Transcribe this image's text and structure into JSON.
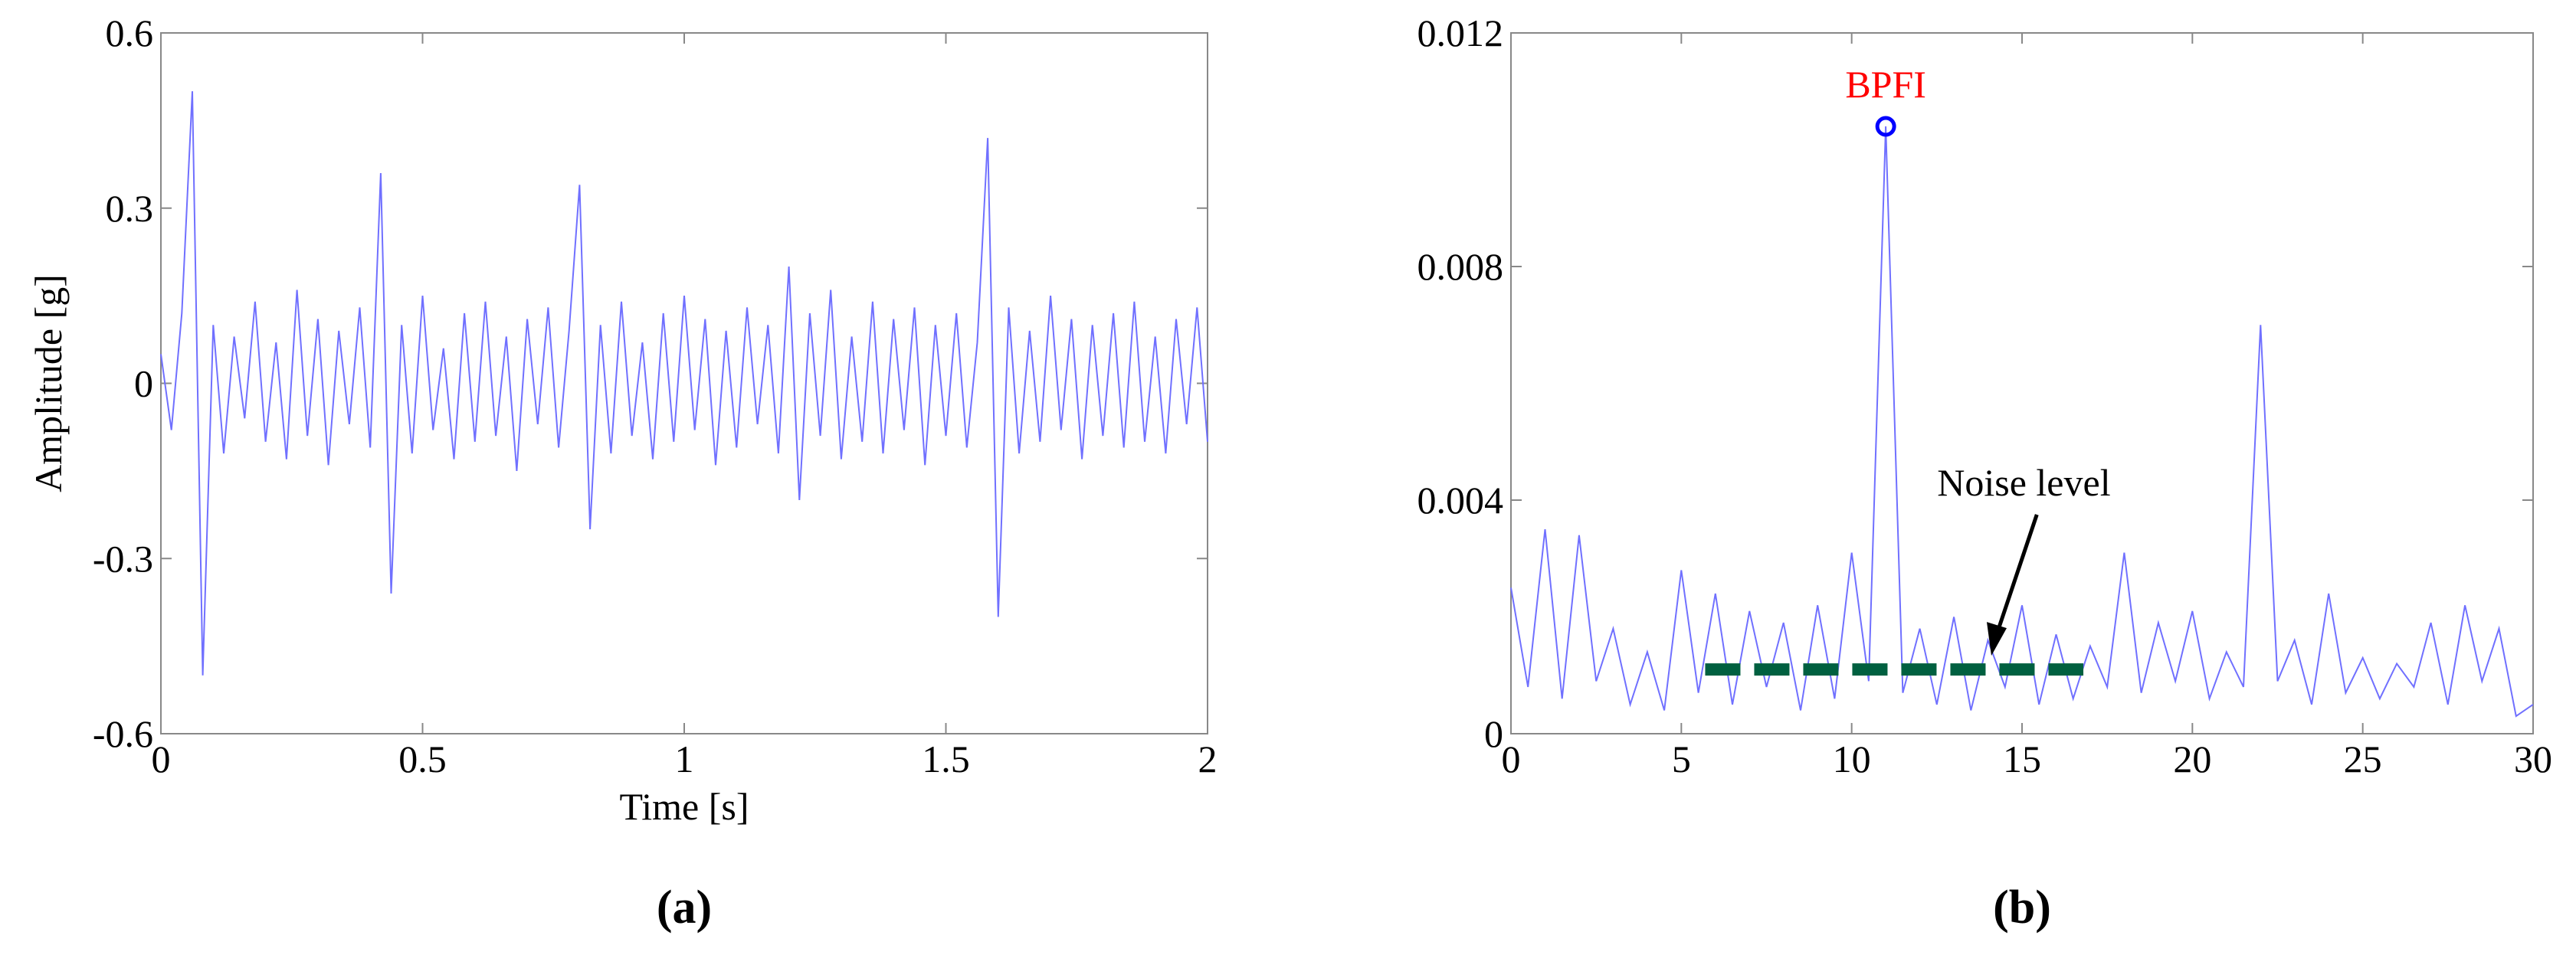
{
  "chart_data": [
    {
      "type": "line",
      "xlabel": "Time [s]",
      "ylabel": "Amplitude [g]",
      "panel_label": "(a)",
      "xlim": [
        0,
        2
      ],
      "ylim": [
        -0.6,
        0.6
      ],
      "xticks": [
        0,
        0.5,
        1,
        1.5,
        2
      ],
      "yticks": [
        -0.6,
        -0.3,
        0,
        0.3,
        0.6
      ],
      "series": [
        {
          "color": "#7070ff",
          "x": [
            0,
            0.02,
            0.04,
            0.06,
            0.08,
            0.1,
            0.12,
            0.14,
            0.16,
            0.18,
            0.2,
            0.22,
            0.24,
            0.26,
            0.28,
            0.3,
            0.32,
            0.34,
            0.36,
            0.38,
            0.4,
            0.42,
            0.44,
            0.46,
            0.48,
            0.5,
            0.52,
            0.54,
            0.56,
            0.58,
            0.6,
            0.62,
            0.64,
            0.66,
            0.68,
            0.7,
            0.72,
            0.74,
            0.76,
            0.78,
            0.8,
            0.82,
            0.84,
            0.86,
            0.88,
            0.9,
            0.92,
            0.94,
            0.96,
            0.98,
            1,
            1.02,
            1.04,
            1.06,
            1.08,
            1.1,
            1.12,
            1.14,
            1.16,
            1.18,
            1.2,
            1.22,
            1.24,
            1.26,
            1.28,
            1.3,
            1.32,
            1.34,
            1.36,
            1.38,
            1.4,
            1.42,
            1.44,
            1.46,
            1.48,
            1.5,
            1.52,
            1.54,
            1.56,
            1.58,
            1.6,
            1.62,
            1.64,
            1.66,
            1.68,
            1.7,
            1.72,
            1.74,
            1.76,
            1.78,
            1.8,
            1.82,
            1.84,
            1.86,
            1.88,
            1.9,
            1.92,
            1.94,
            1.96,
            1.98,
            2
          ],
          "values": [
            0.05,
            -0.08,
            0.12,
            0.5,
            -0.5,
            0.1,
            -0.12,
            0.08,
            -0.06,
            0.14,
            -0.1,
            0.07,
            -0.13,
            0.16,
            -0.09,
            0.11,
            -0.14,
            0.09,
            -0.07,
            0.13,
            -0.11,
            0.36,
            -0.36,
            0.1,
            -0.12,
            0.15,
            -0.08,
            0.06,
            -0.13,
            0.12,
            -0.1,
            0.14,
            -0.09,
            0.08,
            -0.15,
            0.11,
            -0.07,
            0.13,
            -0.11,
            0.09,
            0.34,
            -0.25,
            0.1,
            -0.12,
            0.14,
            -0.09,
            0.07,
            -0.13,
            0.12,
            -0.1,
            0.15,
            -0.08,
            0.11,
            -0.14,
            0.09,
            -0.11,
            0.13,
            -0.07,
            0.1,
            -0.12,
            0.2,
            -0.2,
            0.12,
            -0.09,
            0.16,
            -0.13,
            0.08,
            -0.1,
            0.14,
            -0.12,
            0.11,
            -0.08,
            0.13,
            -0.14,
            0.1,
            -0.09,
            0.12,
            -0.11,
            0.07,
            0.42,
            -0.4,
            0.13,
            -0.12,
            0.09,
            -0.1,
            0.15,
            -0.08,
            0.11,
            -0.13,
            0.1,
            -0.09,
            0.12,
            -0.11,
            0.14,
            -0.1,
            0.08,
            -0.12,
            0.11,
            -0.07,
            0.13,
            -0.1
          ]
        }
      ]
    },
    {
      "type": "line",
      "panel_label": "(b)",
      "xlim": [
        0,
        30
      ],
      "ylim": [
        0,
        0.012
      ],
      "xticks": [
        0,
        5,
        10,
        15,
        20,
        25,
        30
      ],
      "yticks": [
        0,
        0.004,
        0.008,
        0.012
      ],
      "series": [
        {
          "color": "#7070ff",
          "x": [
            0,
            0.5,
            1,
            1.5,
            2,
            2.5,
            3,
            3.5,
            4,
            4.5,
            5,
            5.5,
            6,
            6.5,
            7,
            7.5,
            8,
            8.5,
            9,
            9.5,
            10,
            10.5,
            11,
            11.5,
            12,
            12.5,
            13,
            13.5,
            14,
            14.5,
            15,
            15.5,
            16,
            16.5,
            17,
            17.5,
            18,
            18.5,
            19,
            19.5,
            20,
            20.5,
            21,
            21.5,
            22,
            22.5,
            23,
            23.5,
            24,
            24.5,
            25,
            25.5,
            26,
            26.5,
            27,
            27.5,
            28,
            28.5,
            29,
            29.5,
            30
          ],
          "values": [
            0.0025,
            0.0008,
            0.0035,
            0.0006,
            0.0034,
            0.0009,
            0.0018,
            0.0005,
            0.0014,
            0.0004,
            0.0028,
            0.0007,
            0.0024,
            0.0005,
            0.0021,
            0.0008,
            0.0019,
            0.0004,
            0.0022,
            0.0006,
            0.0031,
            0.0009,
            0.0104,
            0.0007,
            0.0018,
            0.0005,
            0.002,
            0.0004,
            0.0016,
            0.0008,
            0.0022,
            0.0005,
            0.0017,
            0.0006,
            0.0015,
            0.0008,
            0.0031,
            0.0007,
            0.0019,
            0.0009,
            0.0021,
            0.0006,
            0.0014,
            0.0008,
            0.007,
            0.0009,
            0.0016,
            0.0005,
            0.0024,
            0.0007,
            0.0013,
            0.0006,
            0.0012,
            0.0008,
            0.0019,
            0.0005,
            0.0022,
            0.0009,
            0.0018,
            0.0003,
            0.0005
          ]
        }
      ],
      "annotations": [
        {
          "text": "BPFI",
          "x": 11,
          "y": 0.0104,
          "color": "#ff0000",
          "marker_color": "#0000ff"
        }
      ],
      "noise_level": {
        "label": "Noise level",
        "y": 0.0011,
        "x": [
          5.7,
          16.8
        ],
        "color": "#006040"
      }
    }
  ]
}
